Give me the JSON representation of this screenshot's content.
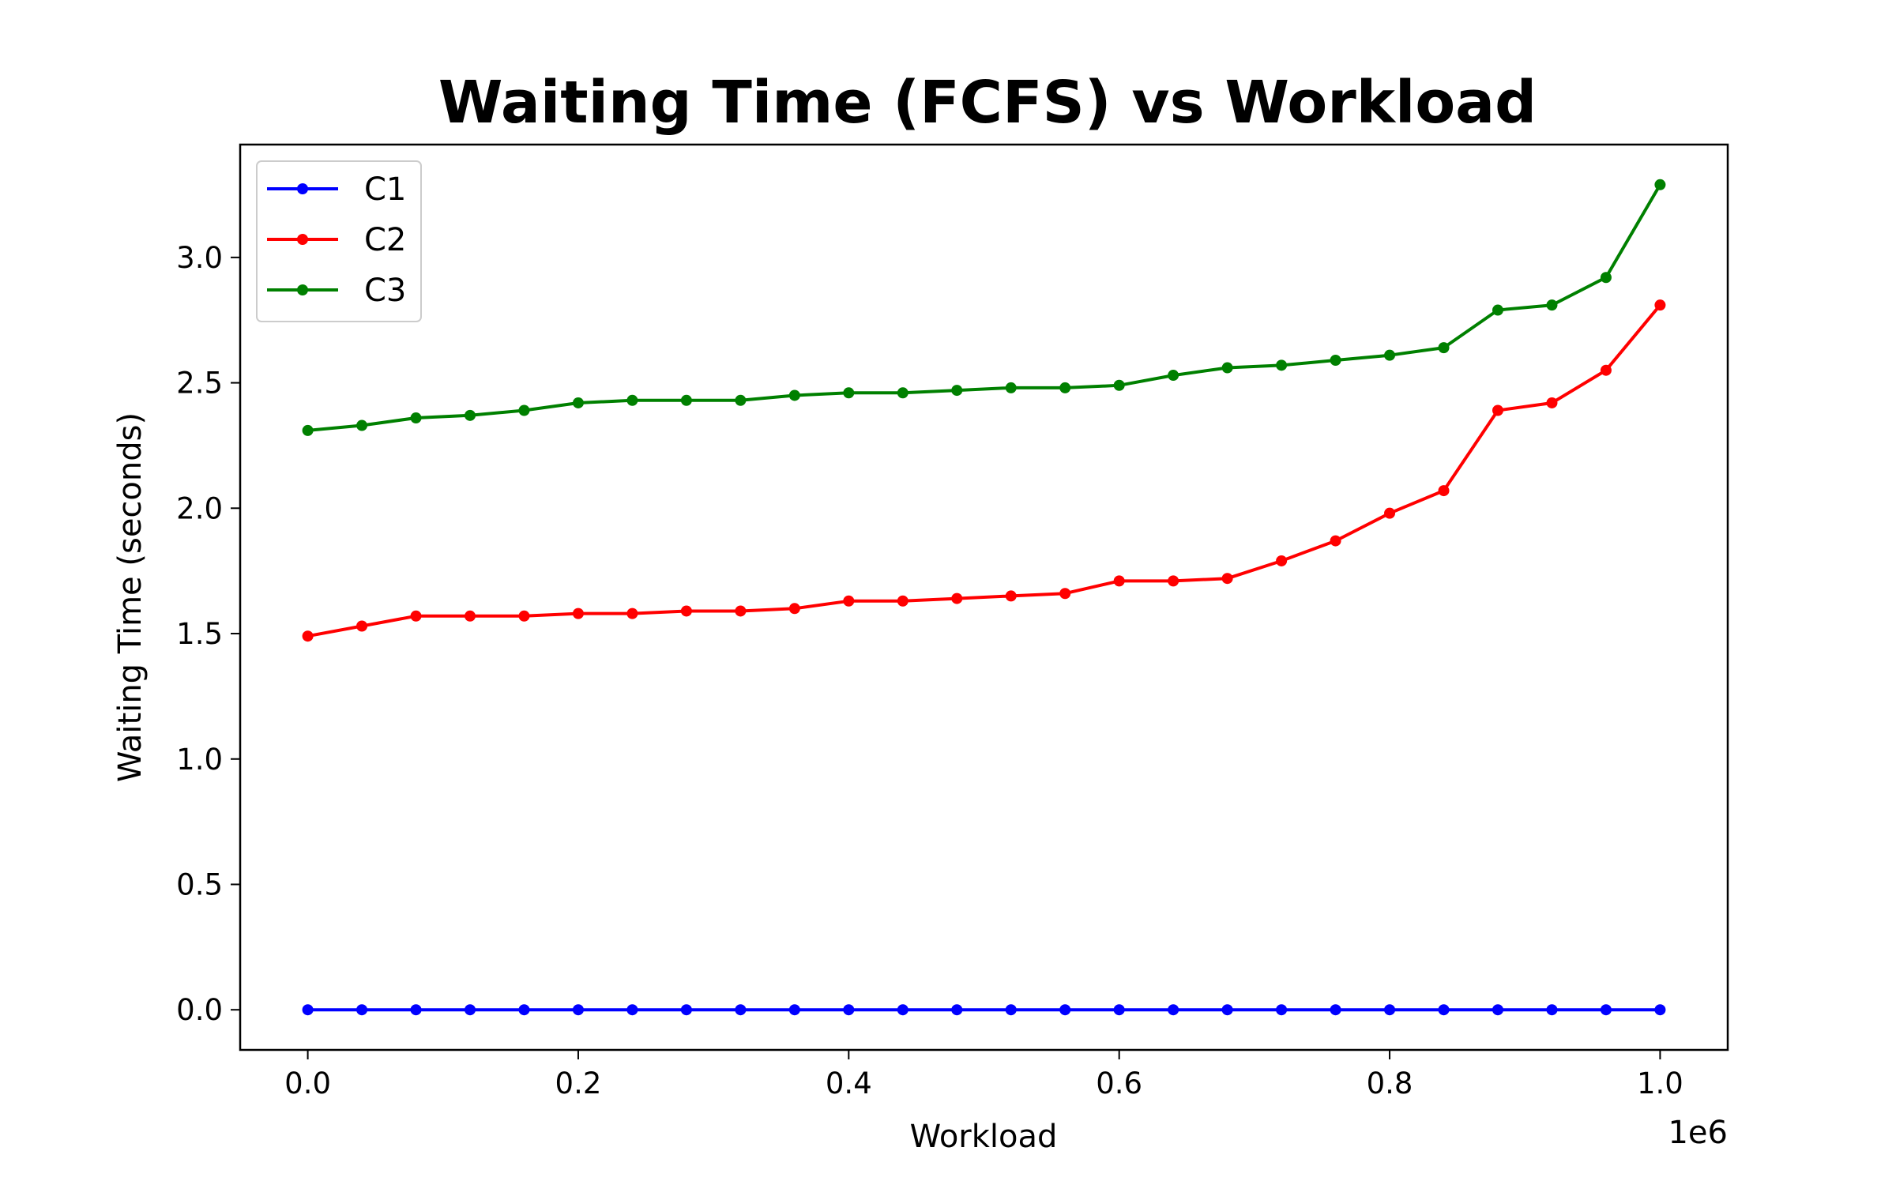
{
  "chart_data": {
    "type": "line",
    "title": "Waiting Time (FCFS) vs Workload",
    "xlabel": "Workload",
    "ylabel": "Waiting Time (seconds)",
    "x_offset_label": "1e6",
    "xlim": [
      -0.05,
      1.05
    ],
    "ylim": [
      -0.16,
      3.45
    ],
    "x_ticks": [
      0.0,
      0.2,
      0.4,
      0.6,
      0.8,
      1.0
    ],
    "x_tick_labels": [
      "0.0",
      "0.2",
      "0.4",
      "0.6",
      "0.8",
      "1.0"
    ],
    "y_ticks": [
      0.0,
      0.5,
      1.0,
      1.5,
      2.0,
      2.5,
      3.0
    ],
    "y_tick_labels": [
      "0.0",
      "0.5",
      "1.0",
      "1.5",
      "2.0",
      "2.5",
      "3.0"
    ],
    "grid": false,
    "legend_position": "upper-left",
    "x": [
      0.0,
      0.04,
      0.08,
      0.12,
      0.16,
      0.2,
      0.24,
      0.28,
      0.32,
      0.36,
      0.4,
      0.44,
      0.48,
      0.52,
      0.56,
      0.6,
      0.64,
      0.68,
      0.72,
      0.76,
      0.8,
      0.84,
      0.88,
      0.92,
      0.96,
      1.0
    ],
    "series": [
      {
        "name": "C1",
        "color": "#0000ff",
        "values": [
          0,
          0,
          0,
          0,
          0,
          0,
          0,
          0,
          0,
          0,
          0,
          0,
          0,
          0,
          0,
          0,
          0,
          0,
          0,
          0,
          0,
          0,
          0,
          0,
          0,
          0
        ]
      },
      {
        "name": "C2",
        "color": "#ff0000",
        "values": [
          1.49,
          1.53,
          1.57,
          1.57,
          1.57,
          1.58,
          1.58,
          1.59,
          1.59,
          1.6,
          1.63,
          1.63,
          1.64,
          1.65,
          1.66,
          1.71,
          1.71,
          1.72,
          1.79,
          1.87,
          1.98,
          2.07,
          2.39,
          2.42,
          2.55,
          2.81
        ]
      },
      {
        "name": "C3",
        "color": "#008000",
        "values": [
          2.31,
          2.33,
          2.36,
          2.37,
          2.39,
          2.42,
          2.43,
          2.43,
          2.43,
          2.45,
          2.46,
          2.46,
          2.47,
          2.48,
          2.48,
          2.49,
          2.53,
          2.56,
          2.57,
          2.59,
          2.61,
          2.64,
          2.79,
          2.81,
          2.92,
          3.29
        ]
      }
    ]
  }
}
